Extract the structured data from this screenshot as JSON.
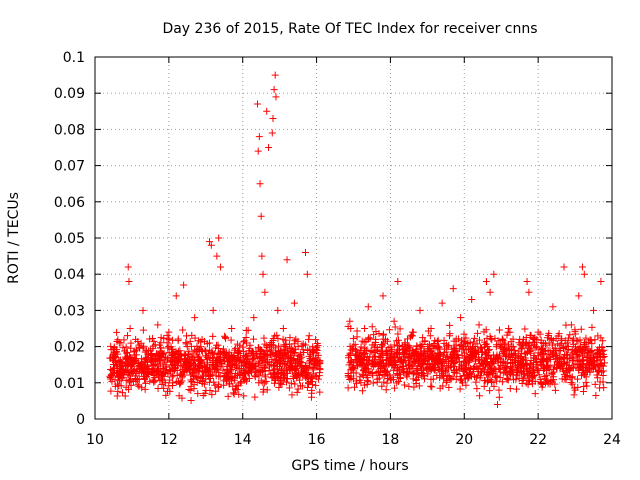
{
  "chart_data": {
    "type": "scatter",
    "title": "Day 236 of 2015, Rate Of TEC Index for receiver cnns",
    "xlabel": "GPS time / hours",
    "ylabel": "ROTI / TECUs",
    "xlim": [
      10,
      24
    ],
    "ylim": [
      0,
      0.1
    ],
    "xticks": [
      10,
      12,
      14,
      16,
      18,
      20,
      22,
      24
    ],
    "yticks": [
      0,
      0.01,
      0.02,
      0.03,
      0.04,
      0.05,
      0.06,
      0.07,
      0.08,
      0.09,
      0.1
    ],
    "xtick_labels": [
      "10",
      "12",
      "14",
      "16",
      "18",
      "20",
      "22",
      "24"
    ],
    "ytick_labels": [
      "0",
      "0.01",
      "0.02",
      "0.03",
      "0.04",
      "0.05",
      "0.06",
      "0.07",
      "0.08",
      "0.09",
      "0.1"
    ],
    "grid": true,
    "marker": "+",
    "color": "#ff0000",
    "series": [
      {
        "name": "ROTI",
        "points": [
          [
            10.45,
            0.012
          ],
          [
            10.5,
            0.018
          ],
          [
            10.55,
            0.009
          ],
          [
            10.6,
            0.015
          ],
          [
            10.7,
            0.021
          ],
          [
            10.8,
            0.013
          ],
          [
            10.9,
            0.042
          ],
          [
            10.92,
            0.038
          ],
          [
            10.95,
            0.025
          ],
          [
            11.0,
            0.016
          ],
          [
            11.1,
            0.022
          ],
          [
            11.2,
            0.011
          ],
          [
            11.3,
            0.03
          ],
          [
            11.4,
            0.014
          ],
          [
            11.5,
            0.019
          ],
          [
            11.6,
            0.012
          ],
          [
            11.7,
            0.026
          ],
          [
            11.8,
            0.017
          ],
          [
            11.9,
            0.01
          ],
          [
            12.0,
            0.024
          ],
          [
            12.1,
            0.015
          ],
          [
            12.2,
            0.034
          ],
          [
            12.3,
            0.012
          ],
          [
            12.4,
            0.037
          ],
          [
            12.5,
            0.02
          ],
          [
            12.6,
            0.009
          ],
          [
            12.7,
            0.028
          ],
          [
            12.8,
            0.014
          ],
          [
            12.9,
            0.022
          ],
          [
            13.0,
            0.011
          ],
          [
            13.1,
            0.049
          ],
          [
            13.15,
            0.048
          ],
          [
            13.2,
            0.03
          ],
          [
            13.3,
            0.045
          ],
          [
            13.35,
            0.05
          ],
          [
            13.4,
            0.042
          ],
          [
            13.5,
            0.018
          ],
          [
            13.6,
            0.013
          ],
          [
            13.7,
            0.025
          ],
          [
            13.8,
            0.008
          ],
          [
            13.9,
            0.016
          ],
          [
            14.0,
            0.012
          ],
          [
            14.1,
            0.021
          ],
          [
            14.2,
            0.014
          ],
          [
            14.3,
            0.028
          ],
          [
            14.4,
            0.087
          ],
          [
            14.42,
            0.074
          ],
          [
            14.45,
            0.078
          ],
          [
            14.47,
            0.065
          ],
          [
            14.5,
            0.056
          ],
          [
            14.52,
            0.045
          ],
          [
            14.55,
            0.04
          ],
          [
            14.6,
            0.035
          ],
          [
            14.65,
            0.085
          ],
          [
            14.7,
            0.075
          ],
          [
            14.8,
            0.079
          ],
          [
            14.82,
            0.083
          ],
          [
            14.85,
            0.091
          ],
          [
            14.88,
            0.095
          ],
          [
            14.9,
            0.089
          ],
          [
            14.95,
            0.03
          ],
          [
            15.0,
            0.018
          ],
          [
            15.1,
            0.025
          ],
          [
            15.2,
            0.044
          ],
          [
            15.3,
            0.016
          ],
          [
            15.4,
            0.032
          ],
          [
            15.5,
            0.02
          ],
          [
            15.6,
            0.013
          ],
          [
            15.7,
            0.046
          ],
          [
            15.75,
            0.04
          ],
          [
            15.8,
            0.023
          ],
          [
            15.9,
            0.014
          ],
          [
            16.0,
            0.019
          ],
          [
            16.05,
            0.011
          ],
          [
            16.9,
            0.027
          ],
          [
            17.0,
            0.014
          ],
          [
            17.1,
            0.018
          ],
          [
            17.2,
            0.01
          ],
          [
            17.3,
            0.025
          ],
          [
            17.4,
            0.031
          ],
          [
            17.5,
            0.015
          ],
          [
            17.6,
            0.022
          ],
          [
            17.7,
            0.012
          ],
          [
            17.8,
            0.034
          ],
          [
            17.9,
            0.019
          ],
          [
            18.0,
            0.011
          ],
          [
            18.1,
            0.027
          ],
          [
            18.2,
            0.038
          ],
          [
            18.3,
            0.016
          ],
          [
            18.4,
            0.021
          ],
          [
            18.5,
            0.009
          ],
          [
            18.6,
            0.024
          ],
          [
            18.7,
            0.014
          ],
          [
            18.8,
            0.03
          ],
          [
            18.9,
            0.012
          ],
          [
            19.0,
            0.018
          ],
          [
            19.1,
            0.025
          ],
          [
            19.2,
            0.015
          ],
          [
            19.3,
            0.02
          ],
          [
            19.4,
            0.032
          ],
          [
            19.5,
            0.013
          ],
          [
            19.6,
            0.023
          ],
          [
            19.7,
            0.036
          ],
          [
            19.8,
            0.017
          ],
          [
            19.9,
            0.028
          ],
          [
            20.0,
            0.012
          ],
          [
            20.1,
            0.021
          ],
          [
            20.2,
            0.033
          ],
          [
            20.3,
            0.016
          ],
          [
            20.4,
            0.026
          ],
          [
            20.5,
            0.014
          ],
          [
            20.6,
            0.038
          ],
          [
            20.7,
            0.035
          ],
          [
            20.8,
            0.04
          ],
          [
            20.9,
            0.004
          ],
          [
            20.95,
            0.006
          ],
          [
            21.0,
            0.02
          ],
          [
            21.1,
            0.013
          ],
          [
            21.2,
            0.025
          ],
          [
            21.3,
            0.017
          ],
          [
            21.4,
            0.011
          ],
          [
            21.5,
            0.022
          ],
          [
            21.6,
            0.015
          ],
          [
            21.7,
            0.038
          ],
          [
            21.75,
            0.035
          ],
          [
            21.8,
            0.019
          ],
          [
            21.9,
            0.012
          ],
          [
            22.0,
            0.024
          ],
          [
            22.1,
            0.016
          ],
          [
            22.2,
            0.01
          ],
          [
            22.3,
            0.021
          ],
          [
            22.4,
            0.031
          ],
          [
            22.5,
            0.014
          ],
          [
            22.6,
            0.019
          ],
          [
            22.7,
            0.042
          ],
          [
            22.8,
            0.012
          ],
          [
            22.9,
            0.026
          ],
          [
            23.0,
            0.015
          ],
          [
            23.1,
            0.034
          ],
          [
            23.2,
            0.042
          ],
          [
            23.25,
            0.04
          ],
          [
            23.3,
            0.02
          ],
          [
            23.4,
            0.013
          ],
          [
            23.5,
            0.03
          ],
          [
            23.6,
            0.018
          ],
          [
            23.7,
            0.038
          ]
        ],
        "clusters": [
          {
            "x_from": 10.4,
            "x_to": 16.1,
            "y_min": 0.004,
            "y_max": 0.024,
            "count": 1100
          },
          {
            "x_from": 16.85,
            "x_to": 23.8,
            "y_min": 0.005,
            "y_max": 0.025,
            "count": 1300
          }
        ]
      }
    ]
  }
}
